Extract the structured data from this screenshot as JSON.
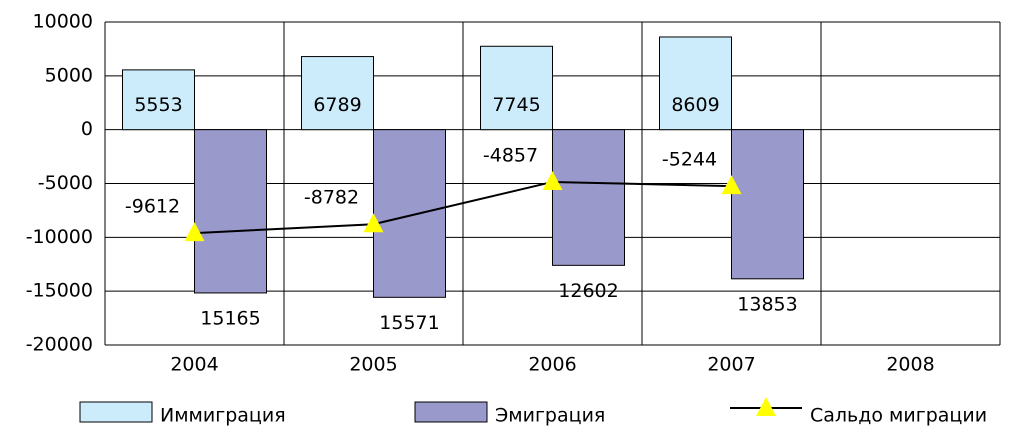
{
  "chart_data": {
    "type": "bar",
    "categories": [
      "2004",
      "2005",
      "2006",
      "2007",
      "2008"
    ],
    "series": [
      {
        "name": "Иммиграция",
        "type": "bar",
        "color": "#ccecfc",
        "values": [
          5553,
          6789,
          7745,
          8609,
          null
        ]
      },
      {
        "name": "Эмиграция",
        "type": "bar",
        "color": "#9999cc",
        "values": [
          -15165,
          -15571,
          -12602,
          -13853,
          null
        ],
        "value_labels": [
          "15165",
          "15571",
          "12602",
          "13853",
          null
        ]
      },
      {
        "name": "Сальдо миграции",
        "type": "line",
        "color": "#000000",
        "marker_color": "#ffff00",
        "values": [
          -9612,
          -8782,
          -4857,
          -5244,
          null
        ]
      }
    ],
    "ylim": [
      -20000,
      10000
    ],
    "yticks": [
      -20000,
      -15000,
      -10000,
      -5000,
      0,
      5000,
      10000
    ],
    "grid": true
  }
}
